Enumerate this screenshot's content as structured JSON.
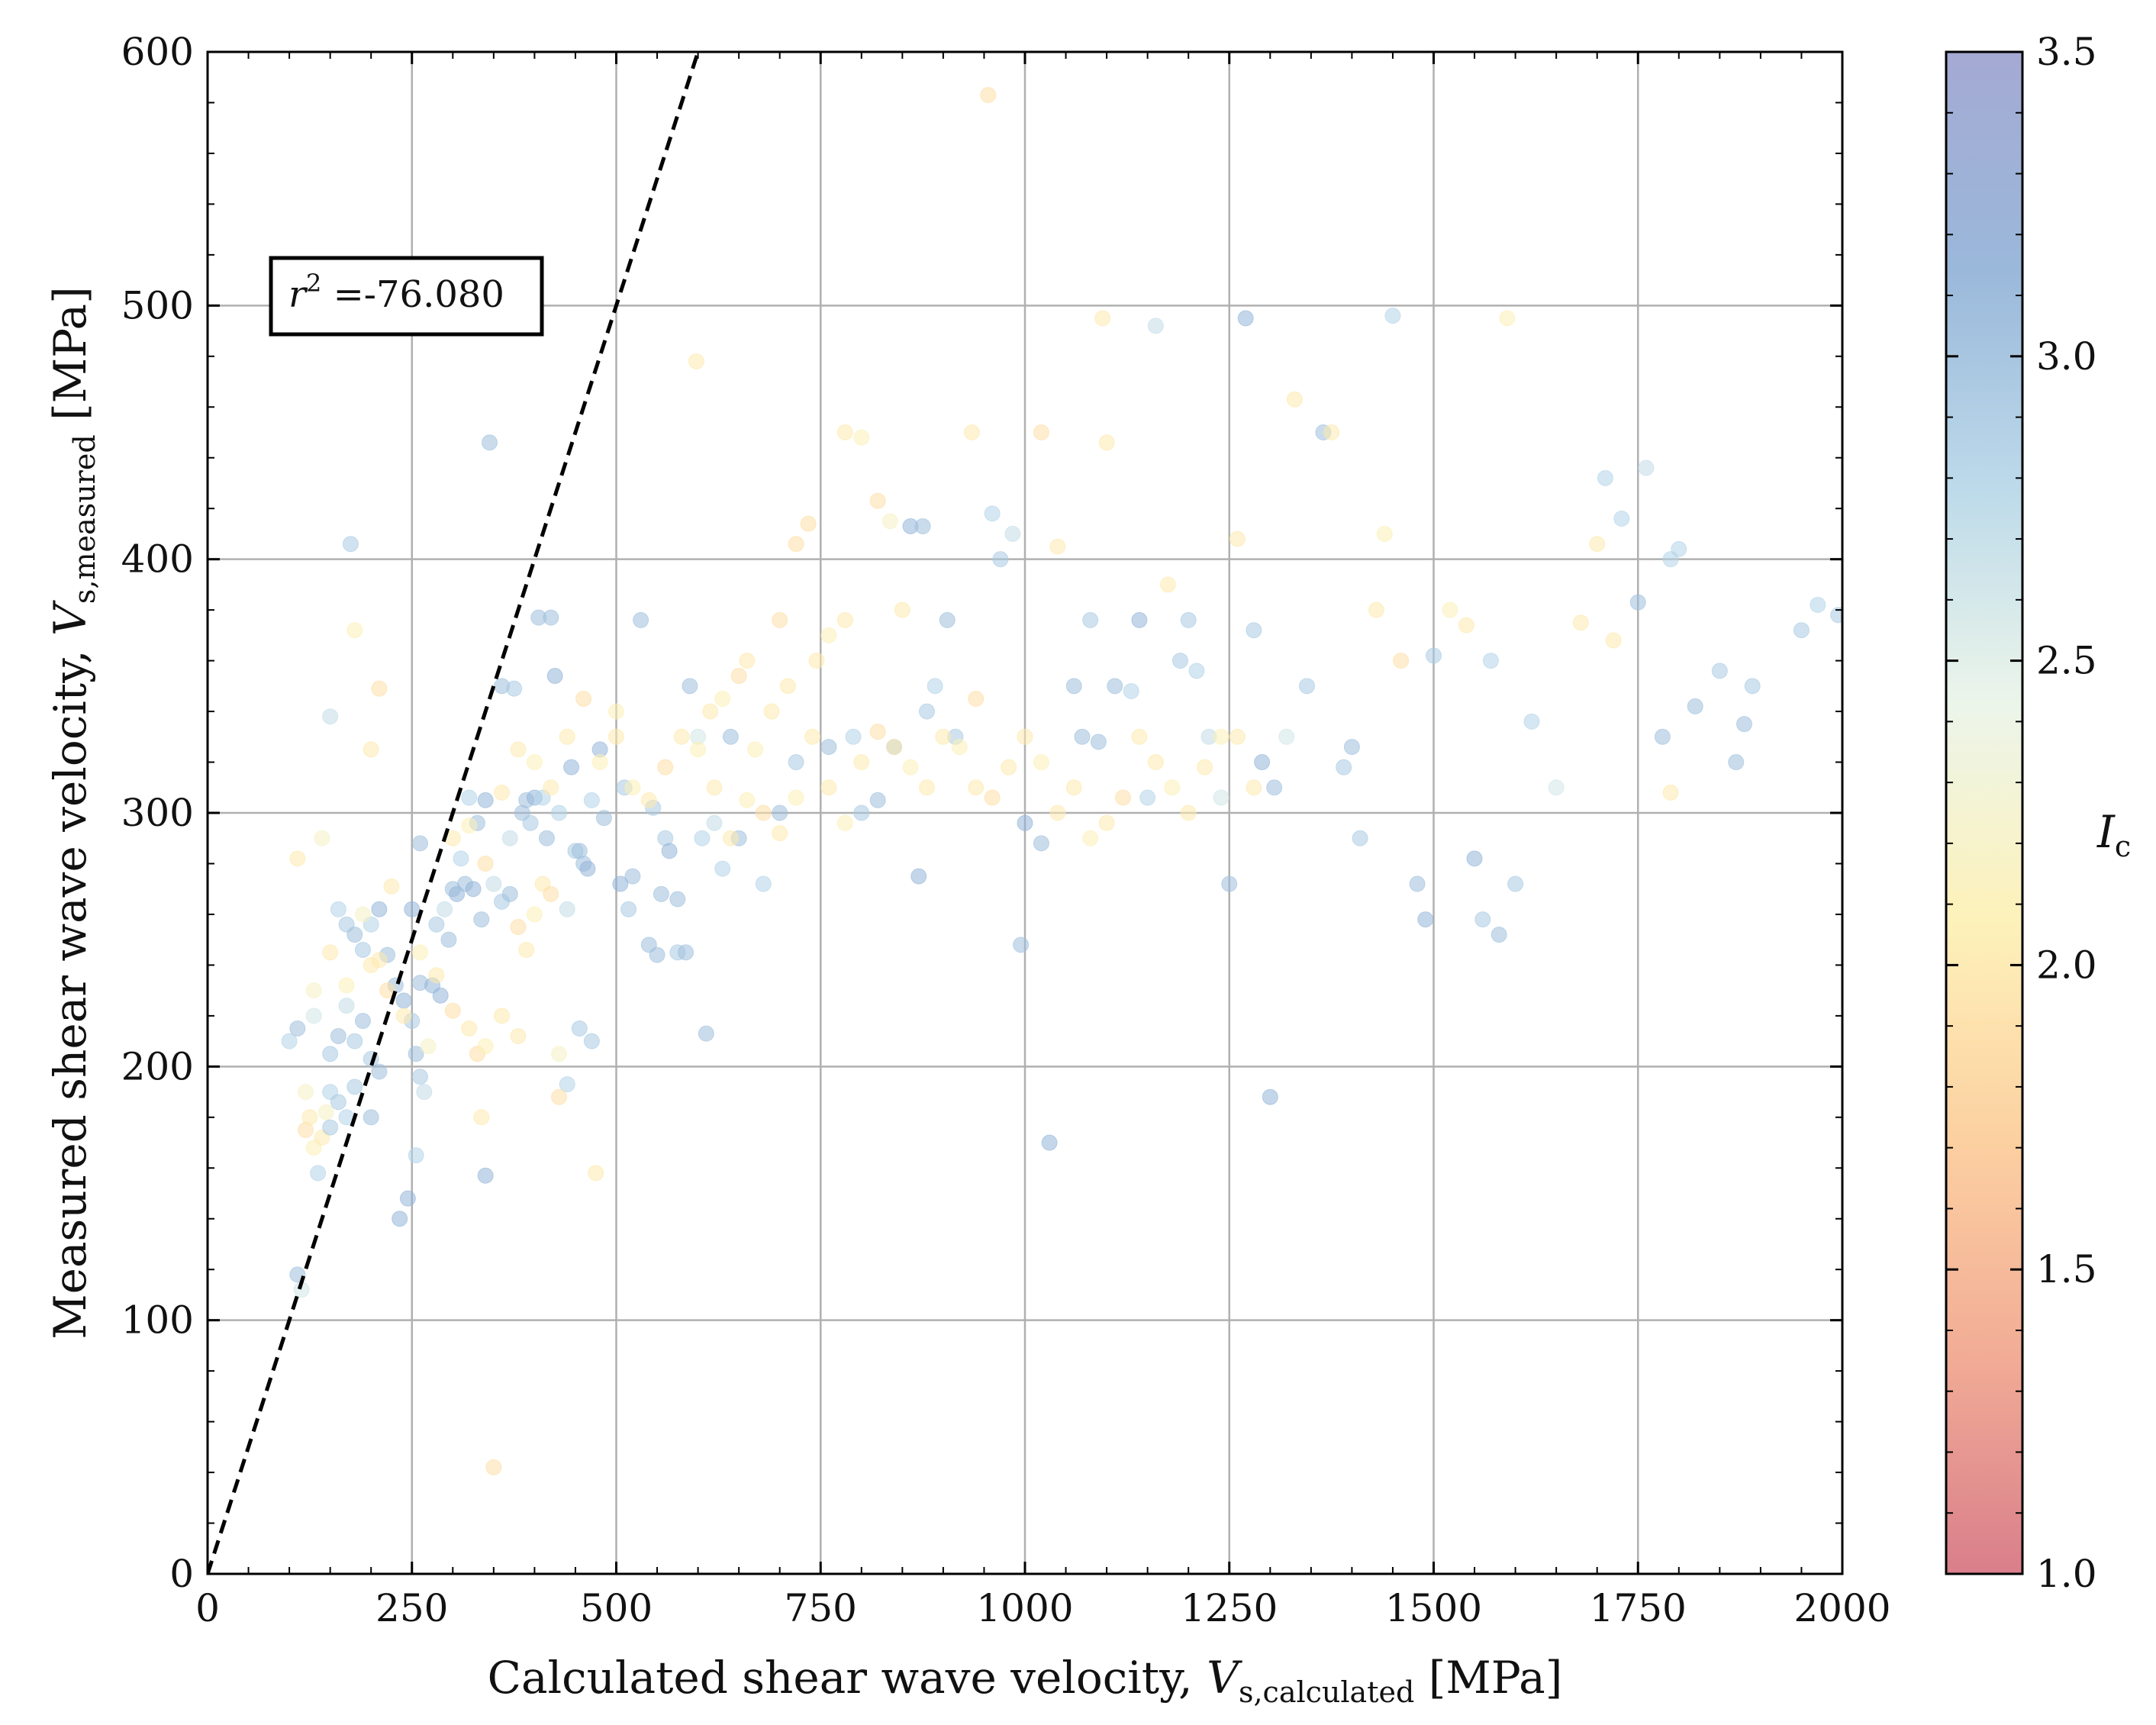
{
  "chart_data": {
    "type": "scatter",
    "title": "",
    "xlabel": {
      "prefix": "Calculated shear wave velocity, ",
      "var": "V",
      "sub": "s,calculated",
      "unit": " [MPa]"
    },
    "ylabel": {
      "prefix": "Measured shear wave velocity, ",
      "var": "V",
      "sub": "s,measured",
      "unit": " [MPa]"
    },
    "xlim": [
      0,
      2000
    ],
    "ylim": [
      0,
      600
    ],
    "x_ticks": [
      0,
      250,
      500,
      750,
      1000,
      1250,
      1500,
      1750,
      2000
    ],
    "y_ticks": [
      0,
      100,
      200,
      300,
      400,
      500,
      600
    ],
    "grid": true,
    "reference_line": {
      "style": "dashed",
      "points": [
        [
          0,
          0
        ],
        [
          600,
          600
        ]
      ]
    },
    "annotation": {
      "var": "r",
      "sup": "2",
      "text": " =-76.080"
    },
    "colorbar": {
      "label": "I",
      "label_sub": "c",
      "range": [
        1.0,
        3.5
      ],
      "ticks": [
        "1.0",
        "1.5",
        "2.0",
        "2.5",
        "3.0",
        "3.5"
      ],
      "colormap": [
        "#d5707e",
        "#f0a38a",
        "#fccb97",
        "#fdf0b2",
        "#eaf4e8",
        "#b5d6e8",
        "#8fb0d6",
        "#9aa0cf"
      ]
    },
    "points": [
      [
        110,
        118,
        3.0
      ],
      [
        115,
        112,
        2.6
      ],
      [
        120,
        175,
        1.9
      ],
      [
        125,
        180,
        2.0
      ],
      [
        120,
        190,
        2.2
      ],
      [
        130,
        168,
        2.1
      ],
      [
        135,
        158,
        2.8
      ],
      [
        140,
        172,
        2.0
      ],
      [
        145,
        182,
        2.2
      ],
      [
        150,
        176,
        2.9
      ],
      [
        100,
        210,
        2.8
      ],
      [
        110,
        215,
        3.0
      ],
      [
        130,
        220,
        2.6
      ],
      [
        150,
        205,
        2.9
      ],
      [
        160,
        212,
        3.0
      ],
      [
        170,
        224,
        2.7
      ],
      [
        180,
        210,
        2.9
      ],
      [
        190,
        218,
        3.0
      ],
      [
        200,
        203,
        2.9
      ],
      [
        210,
        198,
        3.0
      ],
      [
        110,
        282,
        2.0
      ],
      [
        140,
        290,
        2.2
      ],
      [
        160,
        262,
        2.8
      ],
      [
        170,
        256,
        2.9
      ],
      [
        180,
        252,
        3.0
      ],
      [
        190,
        246,
        2.9
      ],
      [
        200,
        256,
        2.8
      ],
      [
        210,
        262,
        3.1
      ],
      [
        220,
        244,
        3.0
      ],
      [
        230,
        232,
        3.0
      ],
      [
        175,
        406,
        2.9
      ],
      [
        180,
        372,
        2.1
      ],
      [
        200,
        325,
        2.0
      ],
      [
        210,
        349,
        1.9
      ],
      [
        150,
        338,
        2.7
      ],
      [
        225,
        271,
        2.0
      ],
      [
        240,
        226,
        3.1
      ],
      [
        250,
        218,
        2.9
      ],
      [
        255,
        205,
        3.0
      ],
      [
        260,
        196,
        2.9
      ],
      [
        245,
        148,
        3.1
      ],
      [
        235,
        140,
        3.1
      ],
      [
        255,
        165,
        2.8
      ],
      [
        265,
        190,
        2.7
      ],
      [
        270,
        208,
        2.2
      ],
      [
        280,
        256,
        2.9
      ],
      [
        290,
        262,
        2.7
      ],
      [
        300,
        270,
        3.0
      ],
      [
        310,
        282,
        2.8
      ],
      [
        260,
        288,
        3.0
      ],
      [
        320,
        306,
        2.8
      ],
      [
        330,
        296,
        3.0
      ],
      [
        340,
        305,
        3.1
      ],
      [
        350,
        272,
        2.7
      ],
      [
        360,
        265,
        2.9
      ],
      [
        345,
        446,
        3.0
      ],
      [
        340,
        157,
        3.1
      ],
      [
        350,
        42,
        1.9
      ],
      [
        330,
        205,
        1.9
      ],
      [
        335,
        180,
        2.0
      ],
      [
        360,
        350,
        3.0
      ],
      [
        375,
        349,
        2.9
      ],
      [
        370,
        290,
        2.7
      ],
      [
        390,
        305,
        3.0
      ],
      [
        400,
        306,
        3.1
      ],
      [
        410,
        306,
        2.8
      ],
      [
        420,
        377,
        3.0
      ],
      [
        405,
        377,
        3.0
      ],
      [
        425,
        354,
        3.1
      ],
      [
        430,
        300,
        2.8
      ],
      [
        380,
        255,
        1.9
      ],
      [
        390,
        246,
        2.0
      ],
      [
        400,
        260,
        2.1
      ],
      [
        410,
        272,
        2.0
      ],
      [
        420,
        268,
        1.9
      ],
      [
        440,
        262,
        2.7
      ],
      [
        450,
        285,
        2.9
      ],
      [
        460,
        280,
        3.0
      ],
      [
        470,
        305,
        2.8
      ],
      [
        480,
        325,
        3.1
      ],
      [
        430,
        205,
        2.2
      ],
      [
        440,
        193,
        2.8
      ],
      [
        455,
        215,
        2.9
      ],
      [
        470,
        210,
        2.9
      ],
      [
        475,
        158,
        2.0
      ],
      [
        430,
        188,
        1.9
      ],
      [
        500,
        340,
        2.1
      ],
      [
        510,
        310,
        2.9
      ],
      [
        520,
        275,
        3.0
      ],
      [
        530,
        376,
        3.0
      ],
      [
        540,
        248,
        3.0
      ],
      [
        550,
        244,
        3.0
      ],
      [
        560,
        290,
        2.9
      ],
      [
        575,
        245,
        2.9
      ],
      [
        590,
        350,
        3.0
      ],
      [
        600,
        330,
        2.6
      ],
      [
        610,
        213,
        3.0
      ],
      [
        620,
        296,
        2.7
      ],
      [
        630,
        278,
        2.8
      ],
      [
        640,
        330,
        3.0
      ],
      [
        598,
        478,
        2.0
      ],
      [
        615,
        340,
        2.0
      ],
      [
        630,
        345,
        2.1
      ],
      [
        650,
        354,
        1.9
      ],
      [
        660,
        360,
        2.0
      ],
      [
        670,
        325,
        2.1
      ],
      [
        690,
        340,
        2.0
      ],
      [
        700,
        376,
        1.9
      ],
      [
        710,
        350,
        2.0
      ],
      [
        720,
        406,
        1.9
      ],
      [
        735,
        414,
        1.9
      ],
      [
        745,
        360,
        2.0
      ],
      [
        760,
        370,
        2.1
      ],
      [
        780,
        376,
        2.0
      ],
      [
        790,
        330,
        2.8
      ],
      [
        800,
        300,
        2.9
      ],
      [
        820,
        305,
        3.0
      ],
      [
        840,
        326,
        3.0
      ],
      [
        860,
        413,
        3.1
      ],
      [
        875,
        413,
        3.0
      ],
      [
        780,
        450,
        2.0
      ],
      [
        800,
        448,
        2.1
      ],
      [
        820,
        423,
        1.9
      ],
      [
        835,
        415,
        2.2
      ],
      [
        850,
        380,
        2.0
      ],
      [
        870,
        275,
        3.1
      ],
      [
        880,
        340,
        2.9
      ],
      [
        890,
        350,
        2.8
      ],
      [
        905,
        376,
        3.0
      ],
      [
        915,
        330,
        2.9
      ],
      [
        935,
        450,
        2.0
      ],
      [
        940,
        345,
        1.9
      ],
      [
        955,
        583,
        1.9
      ],
      [
        960,
        418,
        2.8
      ],
      [
        970,
        400,
        2.9
      ],
      [
        985,
        410,
        2.7
      ],
      [
        995,
        248,
        3.0
      ],
      [
        1000,
        296,
        3.1
      ],
      [
        1020,
        288,
        3.0
      ],
      [
        1030,
        170,
        3.1
      ],
      [
        1020,
        450,
        1.9
      ],
      [
        1040,
        405,
        2.0
      ],
      [
        1060,
        350,
        3.0
      ],
      [
        1070,
        330,
        3.0
      ],
      [
        1080,
        376,
        2.9
      ],
      [
        1090,
        328,
        3.0
      ],
      [
        1100,
        446,
        2.0
      ],
      [
        1095,
        495,
        2.0
      ],
      [
        1110,
        350,
        3.0
      ],
      [
        1130,
        348,
        2.8
      ],
      [
        1140,
        376,
        3.1
      ],
      [
        1150,
        306,
        2.8
      ],
      [
        1160,
        492,
        2.7
      ],
      [
        1175,
        390,
        2.0
      ],
      [
        1190,
        360,
        2.9
      ],
      [
        1200,
        376,
        2.9
      ],
      [
        1210,
        356,
        2.8
      ],
      [
        1225,
        330,
        2.7
      ],
      [
        1240,
        306,
        2.6
      ],
      [
        1250,
        272,
        3.0
      ],
      [
        1260,
        408,
        2.0
      ],
      [
        1270,
        495,
        3.1
      ],
      [
        1280,
        372,
        2.9
      ],
      [
        1290,
        320,
        3.1
      ],
      [
        1300,
        188,
        3.1
      ],
      [
        1305,
        310,
        3.0
      ],
      [
        1320,
        330,
        2.6
      ],
      [
        1330,
        463,
        2.0
      ],
      [
        1345,
        350,
        2.9
      ],
      [
        1365,
        450,
        3.0
      ],
      [
        1375,
        450,
        2.0
      ],
      [
        1390,
        318,
        2.9
      ],
      [
        1400,
        326,
        3.0
      ],
      [
        1410,
        290,
        2.9
      ],
      [
        1430,
        380,
        2.0
      ],
      [
        1440,
        410,
        2.1
      ],
      [
        1450,
        496,
        2.8
      ],
      [
        1460,
        360,
        1.9
      ],
      [
        1480,
        272,
        3.0
      ],
      [
        1490,
        258,
        3.1
      ],
      [
        1500,
        362,
        2.9
      ],
      [
        1520,
        380,
        2.1
      ],
      [
        1540,
        374,
        2.0
      ],
      [
        1550,
        282,
        3.1
      ],
      [
        1560,
        258,
        2.9
      ],
      [
        1570,
        360,
        2.8
      ],
      [
        1580,
        252,
        3.0
      ],
      [
        1590,
        495,
        2.1
      ],
      [
        1600,
        272,
        2.9
      ],
      [
        1620,
        336,
        2.8
      ],
      [
        1650,
        310,
        2.6
      ],
      [
        1680,
        375,
        2.0
      ],
      [
        1700,
        406,
        2.0
      ],
      [
        1710,
        432,
        2.8
      ],
      [
        1730,
        416,
        2.8
      ],
      [
        1750,
        383,
        3.0
      ],
      [
        1760,
        436,
        2.7
      ],
      [
        1780,
        330,
        3.0
      ],
      [
        1790,
        400,
        2.8
      ],
      [
        1800,
        404,
        2.8
      ],
      [
        1820,
        342,
        3.0
      ],
      [
        1850,
        356,
        2.9
      ],
      [
        1870,
        320,
        3.0
      ],
      [
        1880,
        335,
        3.0
      ],
      [
        1890,
        350,
        2.9
      ],
      [
        1950,
        372,
        2.9
      ],
      [
        1970,
        382,
        2.8
      ],
      [
        1995,
        378,
        2.9
      ],
      [
        1790,
        308,
        2.0
      ],
      [
        1720,
        368,
        2.0
      ],
      [
        250,
        262,
        3.1
      ],
      [
        260,
        233,
        3.0
      ],
      [
        275,
        232,
        3.1
      ],
      [
        285,
        228,
        3.1
      ],
      [
        295,
        250,
        3.0
      ],
      [
        305,
        268,
        3.1
      ],
      [
        315,
        272,
        3.0
      ],
      [
        325,
        270,
        3.1
      ],
      [
        335,
        258,
        3.0
      ],
      [
        370,
        268,
        3.0
      ],
      [
        385,
        300,
        3.0
      ],
      [
        395,
        296,
        2.9
      ],
      [
        415,
        290,
        3.0
      ],
      [
        445,
        318,
        3.1
      ],
      [
        455,
        285,
        3.0
      ],
      [
        465,
        278,
        3.1
      ],
      [
        485,
        298,
        3.0
      ],
      [
        505,
        272,
        3.1
      ],
      [
        515,
        262,
        2.9
      ],
      [
        545,
        302,
        2.9
      ],
      [
        555,
        268,
        3.0
      ],
      [
        565,
        285,
        3.1
      ],
      [
        575,
        266,
        3.0
      ],
      [
        585,
        245,
        3.0
      ],
      [
        605,
        290,
        2.8
      ],
      [
        650,
        290,
        3.0
      ],
      [
        680,
        272,
        2.8
      ],
      [
        700,
        300,
        3.0
      ],
      [
        720,
        320,
        2.9
      ],
      [
        760,
        326,
        3.0
      ],
      [
        300,
        290,
        2.0
      ],
      [
        320,
        295,
        2.1
      ],
      [
        340,
        280,
        1.9
      ],
      [
        360,
        308,
        2.0
      ],
      [
        380,
        325,
        2.0
      ],
      [
        400,
        320,
        2.1
      ],
      [
        420,
        310,
        2.0
      ],
      [
        440,
        330,
        2.0
      ],
      [
        460,
        345,
        1.9
      ],
      [
        480,
        320,
        2.1
      ],
      [
        500,
        330,
        2.0
      ],
      [
        520,
        310,
        2.1
      ],
      [
        540,
        305,
        2.0
      ],
      [
        560,
        318,
        1.9
      ],
      [
        580,
        330,
        2.0
      ],
      [
        600,
        325,
        2.1
      ],
      [
        620,
        310,
        2.0
      ],
      [
        640,
        290,
        2.0
      ],
      [
        660,
        305,
        2.1
      ],
      [
        680,
        300,
        1.9
      ],
      [
        700,
        292,
        2.0
      ],
      [
        720,
        306,
        2.1
      ],
      [
        740,
        330,
        2.0
      ],
      [
        760,
        310,
        2.0
      ],
      [
        780,
        296,
        2.1
      ],
      [
        800,
        320,
        2.0
      ],
      [
        820,
        332,
        1.9
      ],
      [
        840,
        326,
        2.0
      ],
      [
        860,
        318,
        2.1
      ],
      [
        880,
        310,
        2.0
      ],
      [
        900,
        330,
        2.0
      ],
      [
        920,
        326,
        2.1
      ],
      [
        940,
        310,
        2.0
      ],
      [
        960,
        306,
        1.9
      ],
      [
        980,
        318,
        2.0
      ],
      [
        1000,
        330,
        2.0
      ],
      [
        1020,
        320,
        2.1
      ],
      [
        1040,
        300,
        2.0
      ],
      [
        1060,
        310,
        2.0
      ],
      [
        1080,
        290,
        2.1
      ],
      [
        1100,
        296,
        2.0
      ],
      [
        1120,
        306,
        1.9
      ],
      [
        1140,
        330,
        2.0
      ],
      [
        1160,
        320,
        2.0
      ],
      [
        1180,
        310,
        2.1
      ],
      [
        1200,
        300,
        2.0
      ],
      [
        1220,
        318,
        2.0
      ],
      [
        1240,
        330,
        2.1
      ],
      [
        1260,
        330,
        2.0
      ],
      [
        1280,
        310,
        2.0
      ],
      [
        200,
        240,
        2.0
      ],
      [
        220,
        230,
        1.9
      ],
      [
        240,
        220,
        2.0
      ],
      [
        260,
        245,
        2.1
      ],
      [
        280,
        236,
        2.0
      ],
      [
        300,
        222,
        1.9
      ],
      [
        320,
        215,
        2.0
      ],
      [
        340,
        208,
        2.1
      ],
      [
        360,
        220,
        2.0
      ],
      [
        380,
        212,
        2.0
      ],
      [
        130,
        230,
        2.2
      ],
      [
        150,
        245,
        2.0
      ],
      [
        170,
        232,
        2.1
      ],
      [
        190,
        260,
        2.2
      ],
      [
        210,
        242,
        2.0
      ],
      [
        150,
        190,
        2.8
      ],
      [
        160,
        186,
        2.9
      ],
      [
        170,
        180,
        2.8
      ],
      [
        180,
        192,
        2.9
      ],
      [
        200,
        180,
        3.0
      ]
    ]
  }
}
